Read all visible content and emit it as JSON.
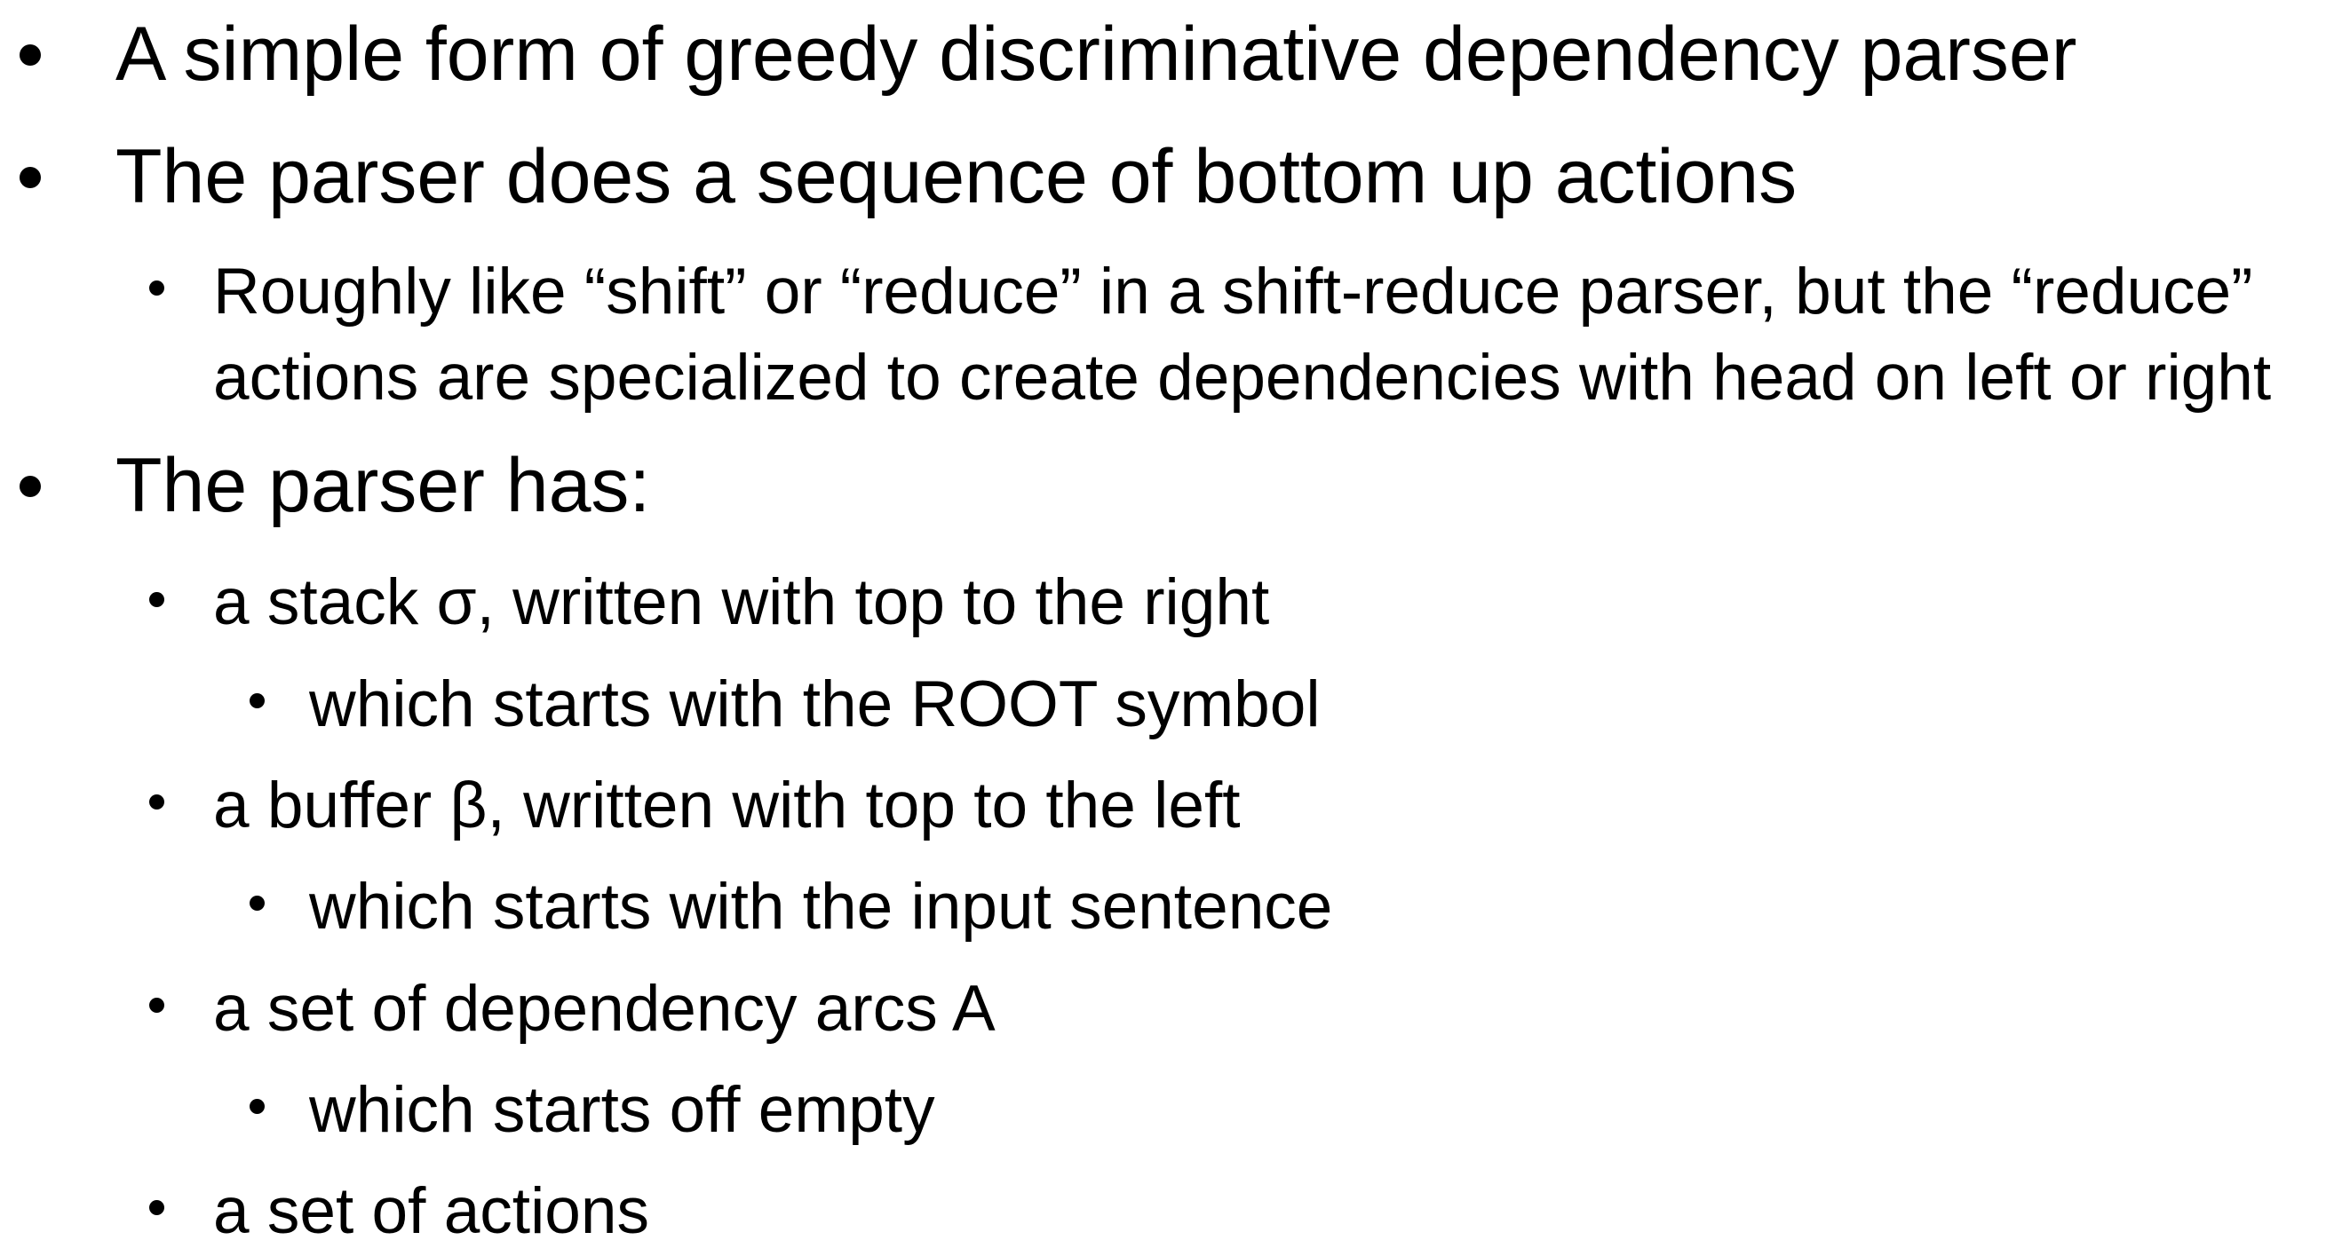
{
  "slide": {
    "items": [
      {
        "level": 1,
        "text": "A simple form of greedy discriminative dependency parser"
      },
      {
        "level": 1,
        "text": "The parser does a sequence of bottom up actions"
      },
      {
        "level": 2,
        "text": "Roughly like “shift” or “reduce” in a shift-reduce parser, but the “reduce”",
        "continuation": "actions are specialized to create dependencies with head on left or right"
      },
      {
        "level": 1,
        "text": "The parser has:"
      },
      {
        "level": 2,
        "text": "a stack σ, written with top to the right"
      },
      {
        "level": 3,
        "text": "which starts with the ROOT symbol"
      },
      {
        "level": 2,
        "text": "a buffer β, written with top to the left"
      },
      {
        "level": 3,
        "text": "which starts with the input sentence"
      },
      {
        "level": 2,
        "text": "a set of dependency arcs A"
      },
      {
        "level": 3,
        "text": "which starts off empty"
      },
      {
        "level": 2,
        "text": "a set of actions"
      }
    ]
  }
}
